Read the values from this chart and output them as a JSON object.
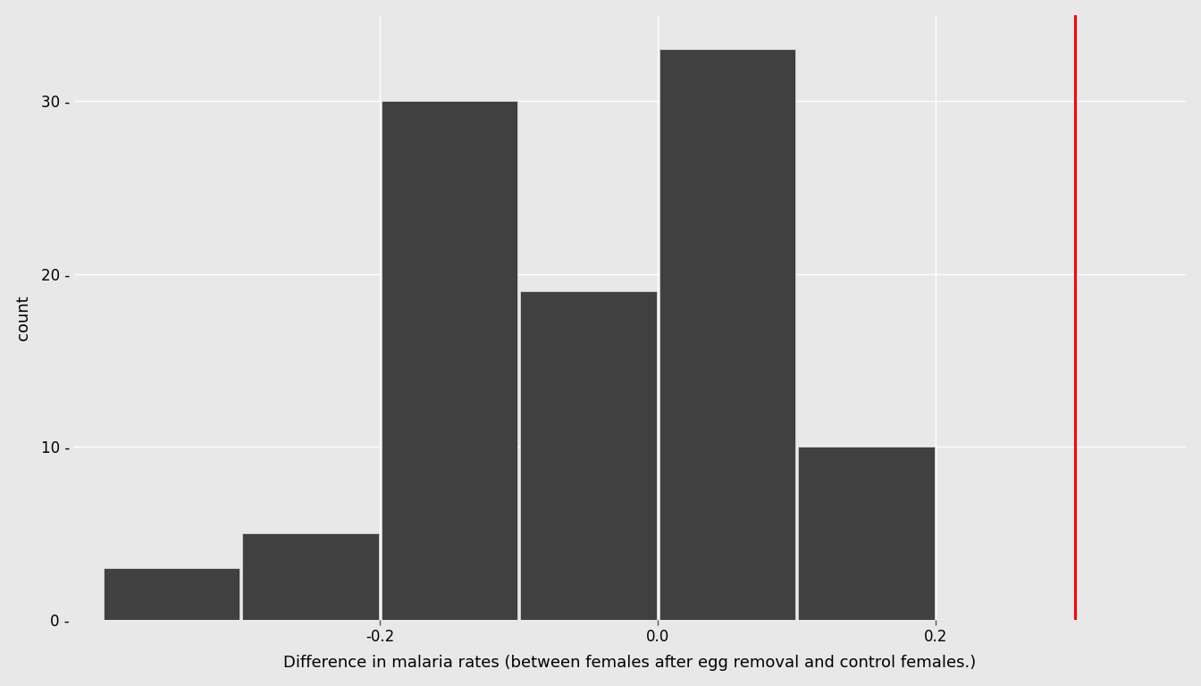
{
  "title": "",
  "xlabel": "Difference in malaria rates (between females after egg removal and control females.)",
  "ylabel": "count",
  "bar_edges": [
    -0.4,
    -0.3,
    -0.2,
    -0.1,
    0.0,
    0.1,
    0.2
  ],
  "bar_heights": [
    3,
    5,
    30,
    19,
    33,
    10
  ],
  "bar_color": "#404040",
  "bar_edgecolor": "#d4d4d4",
  "vline_x": 0.3,
  "vline_color": "#ff0000",
  "vline_lw": 2.2,
  "xlim": [
    -0.42,
    0.38
  ],
  "ylim": [
    0,
    35
  ],
  "yticks": [
    0,
    10,
    20,
    30
  ],
  "ytick_labels": [
    "0 -",
    "10 -",
    "20 -",
    "30 -"
  ],
  "xticks": [
    -0.2,
    0.0,
    0.2
  ],
  "xtick_labels": [
    "-0.2",
    "0.0",
    "0.2"
  ],
  "background_color": "#e8e8e8",
  "plot_bg_color": "#e8e8e8",
  "grid_color": "#ffffff",
  "tick_label_fontsize": 12,
  "axis_label_fontsize": 13,
  "grid_lw": 1.0
}
